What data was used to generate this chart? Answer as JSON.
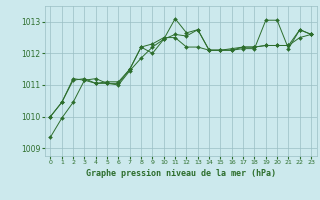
{
  "title": "Graphe pression niveau de la mer (hPa)",
  "bg_color": "#cce9ed",
  "plot_bg_color": "#cce9ed",
  "line_color": "#2d6e2d",
  "marker_color": "#2d6e2d",
  "grid_color": "#9abfc4",
  "ylim": [
    1008.75,
    1013.5
  ],
  "xlim": [
    -0.5,
    23.5
  ],
  "yticks": [
    1009,
    1010,
    1011,
    1012,
    1013
  ],
  "xticks": [
    0,
    1,
    2,
    3,
    4,
    5,
    6,
    7,
    8,
    9,
    10,
    11,
    12,
    13,
    14,
    15,
    16,
    17,
    18,
    19,
    20,
    21,
    22,
    23
  ],
  "series": [
    [
      1009.35,
      1009.95,
      1010.45,
      1011.15,
      1011.2,
      1011.05,
      1011.0,
      1011.45,
      1011.85,
      1012.2,
      1012.45,
      1013.1,
      1012.65,
      1012.75,
      1012.1,
      1012.1,
      1012.1,
      1012.15,
      1012.15,
      1013.05,
      1013.05,
      1012.15,
      1012.75,
      1012.6
    ],
    [
      1010.0,
      1010.45,
      1011.2,
      1011.15,
      1011.05,
      1011.05,
      1011.05,
      1011.5,
      1012.2,
      1012.0,
      1012.45,
      1012.6,
      1012.55,
      1012.75,
      1012.1,
      1012.1,
      1012.15,
      1012.2,
      1012.2,
      1012.25,
      1012.25,
      1012.25,
      1012.75,
      1012.6
    ],
    [
      1010.0,
      1010.45,
      1011.15,
      1011.2,
      1011.05,
      1011.1,
      1011.1,
      1011.5,
      1012.2,
      1012.3,
      1012.5,
      1012.5,
      1012.2,
      1012.2,
      1012.1,
      1012.1,
      1012.1,
      1012.2,
      1012.2,
      1012.25,
      1012.25,
      1012.25,
      1012.5,
      1012.6
    ]
  ]
}
